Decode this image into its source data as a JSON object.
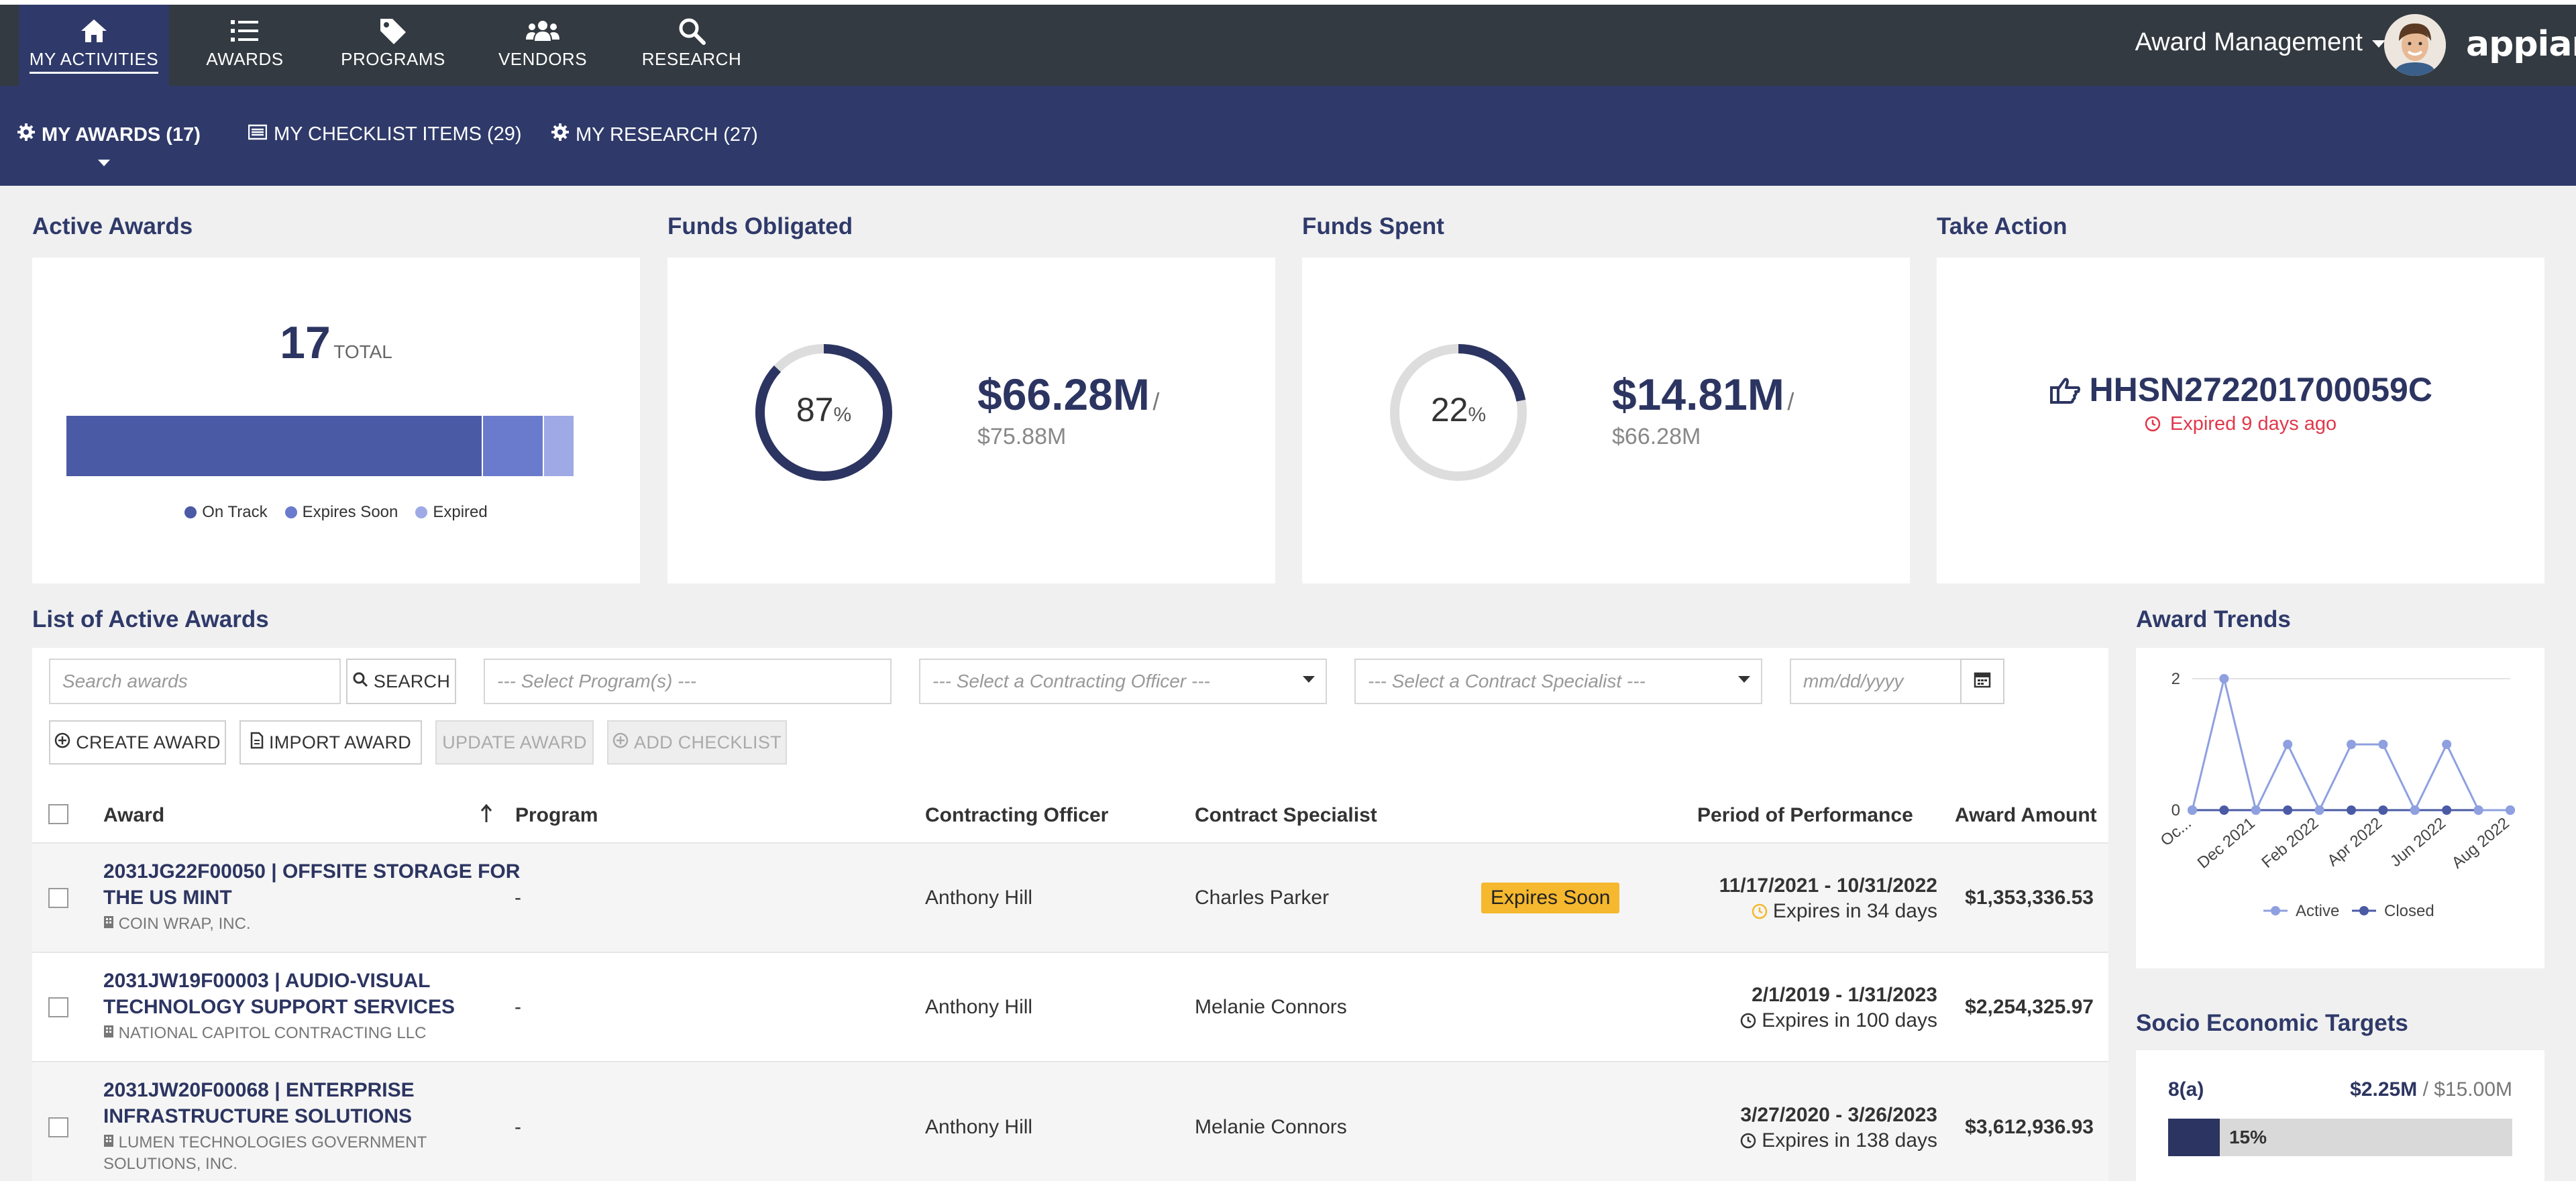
{
  "nav": {
    "items": [
      {
        "label": "MY ACTIVITIES",
        "icon": "home-icon",
        "active": true
      },
      {
        "label": "AWARDS",
        "icon": "list-icon",
        "active": false
      },
      {
        "label": "PROGRAMS",
        "icon": "tag-icon",
        "active": false
      },
      {
        "label": "VENDORS",
        "icon": "users-icon",
        "active": false
      },
      {
        "label": "RESEARCH",
        "icon": "search-icon",
        "active": false
      }
    ],
    "app_title": "Award Management",
    "brand": "appian"
  },
  "subnav": {
    "tabs": [
      {
        "label": "MY AWARDS (17)",
        "icon": "gear-icon",
        "active": true
      },
      {
        "label": "MY CHECKLIST ITEMS (29)",
        "icon": "checklist-icon",
        "active": false
      },
      {
        "label": "MY RESEARCH (27)",
        "icon": "gear-icon",
        "active": false
      }
    ]
  },
  "active_awards": {
    "title": "Active Awards",
    "total": "17",
    "total_label": "TOTAL",
    "breakdown": [
      {
        "name": "On Track",
        "value": 14,
        "color": "#4b5aa5"
      },
      {
        "name": "Expires Soon",
        "value": 2,
        "color": "#6a7bcd"
      },
      {
        "name": "Expired",
        "value": 1,
        "color": "#9ea9e6"
      }
    ]
  },
  "funds_obligated": {
    "title": "Funds Obligated",
    "percent": 87,
    "percent_text": "87",
    "percent_sign": "%",
    "amount": "$66.28M",
    "slash": "/",
    "of": "$75.88M",
    "color": "#2c3561"
  },
  "funds_spent": {
    "title": "Funds Spent",
    "percent": 22,
    "percent_text": "22",
    "percent_sign": "%",
    "amount": "$14.81M",
    "slash": "/",
    "of": "$66.28M",
    "color": "#2c3561"
  },
  "take_action": {
    "title": "Take Action",
    "award_id": "HHSN272201700059C",
    "status": "Expired 9 days ago",
    "icon": "pointing-hand-icon",
    "status_icon": "clock-icon"
  },
  "list": {
    "title": "List of Active Awards",
    "search_placeholder": "Search awards",
    "search_button": "SEARCH",
    "program_placeholder": "--- Select Program(s) ---",
    "officer_placeholder": "--- Select a Contracting Officer ---",
    "specialist_placeholder": "--- Select a Contract Specialist ---",
    "date_placeholder": "mm/dd/yyyy",
    "buttons": {
      "create": "CREATE AWARD",
      "import": "IMPORT AWARD",
      "update": "UPDATE AWARD",
      "add_checklist": "ADD CHECKLIST"
    },
    "columns": {
      "award": "Award",
      "program": "Program",
      "officer": "Contracting Officer",
      "specialist": "Contract Specialist",
      "period": "Period of Performance",
      "amount": "Award Amount"
    },
    "rows": [
      {
        "title_line1": "2031JG22F00050 | OFFSITE STORAGE FOR",
        "title_line2": "THE US MINT",
        "vendor_line1": "COIN WRAP, INC.",
        "vendor_line2": "",
        "program": "-",
        "officer": "Anthony Hill",
        "specialist": "Charles Parker",
        "badge": "Expires Soon",
        "period": "11/17/2021 - 10/31/2022",
        "expires": "Expires in 34 days",
        "amount": "$1,353,336.53"
      },
      {
        "title_line1": "2031JW19F00003 | AUDIO-VISUAL",
        "title_line2": "TECHNOLOGY SUPPORT SERVICES",
        "vendor_line1": "NATIONAL CAPITOL CONTRACTING LLC",
        "vendor_line2": "",
        "program": "-",
        "officer": "Anthony Hill",
        "specialist": "Melanie Connors",
        "badge": "",
        "period": "2/1/2019 - 1/31/2023",
        "expires": "Expires in 100 days",
        "amount": "$2,254,325.97"
      },
      {
        "title_line1": "2031JW20F00068 | ENTERPRISE",
        "title_line2": "INFRASTRUCTURE SOLUTIONS",
        "vendor_line1": "LUMEN TECHNOLOGIES GOVERNMENT",
        "vendor_line2": "SOLUTIONS, INC.",
        "program": "-",
        "officer": "Anthony Hill",
        "specialist": "Melanie Connors",
        "badge": "",
        "period": "3/27/2020 - 3/26/2023",
        "expires": "Expires in 138 days",
        "amount": "$3,612,936.93"
      }
    ]
  },
  "chart_data": {
    "type": "line",
    "title": "Award Trends",
    "tick_labels": [
      "Oc...",
      "Dec 2021",
      "Feb 2022",
      "Apr 2022",
      "Jun 2022",
      "Aug 2022"
    ],
    "y_ticks": [
      "0",
      "2"
    ],
    "ylim": [
      0,
      2
    ],
    "grid": true,
    "legend_position": "bottom",
    "series": [
      {
        "name": "Active",
        "color": "#8fa0e0",
        "values": [
          0,
          2,
          0,
          1,
          0,
          1,
          1,
          0,
          1,
          0,
          0
        ]
      },
      {
        "name": "Closed",
        "color": "#4b5aa5",
        "values": [
          0,
          0,
          0,
          0,
          0,
          0,
          0,
          0,
          0,
          0,
          0
        ]
      }
    ]
  },
  "socio": {
    "title": "Socio Economic Targets",
    "items": [
      {
        "name": "8(a)",
        "amount": "$2.25M",
        "slash": "/",
        "target": "$15.00M",
        "percent": 15,
        "percent_text": "15%",
        "color": "#2c3561"
      }
    ]
  }
}
